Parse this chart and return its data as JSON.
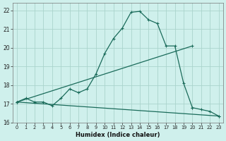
{
  "xlabel": "Humidex (Indice chaleur)",
  "bg_color": "#cff0ec",
  "grid_color": "#aad4cc",
  "line_color": "#1a6b5a",
  "xlim": [
    -0.5,
    23.5
  ],
  "ylim": [
    16,
    22.4
  ],
  "yticks": [
    16,
    17,
    18,
    19,
    20,
    21,
    22
  ],
  "xticks": [
    0,
    1,
    2,
    3,
    4,
    5,
    6,
    7,
    8,
    9,
    10,
    11,
    12,
    13,
    14,
    15,
    16,
    17,
    18,
    19,
    20,
    21,
    22,
    23
  ],
  "series": [
    {
      "x": [
        0,
        1,
        2,
        3,
        4,
        5,
        6,
        7,
        8,
        9,
        10,
        11,
        12,
        13,
        14,
        15,
        16,
        17,
        18,
        19,
        20
      ],
      "y": [
        17.1,
        17.3,
        17.1,
        17.1,
        16.9,
        17.3,
        17.8,
        17.6,
        17.8,
        18.6,
        19.7,
        20.5,
        21.05,
        21.9,
        21.95,
        21.5,
        21.3,
        20.1,
        20.1,
        18.1,
        16.8
      ]
    },
    {
      "x": [
        0,
        20
      ],
      "y": [
        17.1,
        20.1
      ]
    },
    {
      "x": [
        0,
        23
      ],
      "y": [
        17.1,
        16.35
      ]
    },
    {
      "x": [
        20,
        21,
        22,
        23
      ],
      "y": [
        16.8,
        16.7,
        16.6,
        16.35
      ]
    }
  ]
}
